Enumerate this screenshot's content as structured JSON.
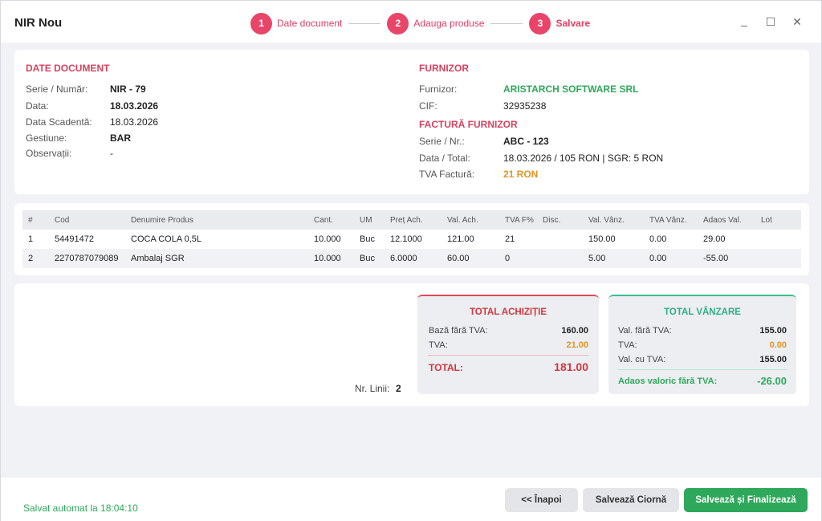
{
  "window": {
    "title": "NIR Nou"
  },
  "steps": [
    {
      "num": "1",
      "label": "Date document"
    },
    {
      "num": "2",
      "label": "Adauga produse"
    },
    {
      "num": "3",
      "label": "Salvare"
    }
  ],
  "window_controls": {
    "minimize": "_",
    "maximize": "☐",
    "close": "✕"
  },
  "doc": {
    "title": "DATE DOCUMENT",
    "rows": [
      {
        "label": "Serie / Număr:",
        "value": "NIR - 79"
      },
      {
        "label": "Data:",
        "value": "18.03.2026"
      },
      {
        "label": "Data Scadentă:",
        "value": "18.03.2026"
      },
      {
        "label": "Gestiune:",
        "value": "BAR"
      },
      {
        "label": "Observații:",
        "value": "-"
      }
    ]
  },
  "supplier": {
    "title": "FURNIZOR",
    "name_label": "Furnizor:",
    "name": "ARISTARCH SOFTWARE SRL",
    "cif_label": "CIF:",
    "cif": "32935238",
    "invoice_title": "FACTURĂ FURNIZOR",
    "series_label": "Serie / Nr.:",
    "series": "ABC - 123",
    "date_total_label": "Data / Total:",
    "date_total": "18.03.2026 / 105 RON | SGR: 5 RON",
    "vat_label": "TVA Factură:",
    "vat": "21 RON"
  },
  "table": {
    "headers": [
      "#",
      "Cod",
      "Denumire Produs",
      "Cant.",
      "UM",
      "Preț Ach.",
      "Val. Ach.",
      "TVA F%",
      "Disc.",
      "Val. Vânz.",
      "TVA Vânz.",
      "Adaos Val.",
      "Lot"
    ],
    "rows": [
      [
        "1",
        "54491472",
        "COCA COLA 0,5L",
        "10.000",
        "Buc",
        "12.1000",
        "121.00",
        "21",
        "",
        "150.00",
        "0.00",
        "29.00",
        ""
      ],
      [
        "2",
        "2270787079089",
        "Ambalaj SGR",
        "10.000",
        "Buc",
        "6.0000",
        "60.00",
        "0",
        "",
        "5.00",
        "0.00",
        "-55.00",
        ""
      ]
    ]
  },
  "lines": {
    "label": "Nr. Linii:",
    "value": "2"
  },
  "purchase": {
    "title": "TOTAL ACHIZIȚIE",
    "base_label": "Bază fără TVA:",
    "base": "160.00",
    "vat_label": "TVA:",
    "vat": "21.00",
    "total_label": "TOTAL:",
    "total": "181.00",
    "accent": "#e04a5a"
  },
  "sale": {
    "title": "TOTAL VÂNZARE",
    "net_label": "Val. fără TVA:",
    "net": "155.00",
    "vat_label": "TVA:",
    "vat": "0.00",
    "gross_label": "Val. cu TVA:",
    "gross": "155.00",
    "markup_label": "Adaos valoric fără TVA:",
    "markup": "-26.00",
    "accent": "#3bbf8d"
  },
  "footer": {
    "autosave": "Salvat automat la 18:04:10",
    "back": "<< Înapoi",
    "draft": "Salvează Ciornă",
    "finalize": "Salvează și Finalizează"
  }
}
